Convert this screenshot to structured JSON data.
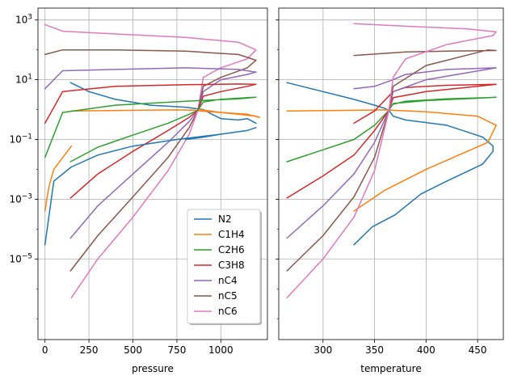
{
  "chart_data": [
    {
      "type": "line",
      "id": "left",
      "xlabel": "pressure",
      "ylabel": "",
      "yscale": "log",
      "xlim": [
        -40,
        1265
      ],
      "ylim": [
        2e-08,
        2500
      ],
      "xticks": [
        0,
        250,
        500,
        750,
        1000
      ],
      "xtick_labels": [
        "0",
        "250",
        "500",
        "750",
        "1000"
      ],
      "grid": true,
      "legend": "lower-right",
      "series": [
        {
          "name": "N2",
          "color": "#1f77b4",
          "x": [
            145,
            250,
            400,
            600,
            800,
            900,
            950,
            1000,
            1100,
            1150,
            1200
          ],
          "y": [
            8,
            4,
            2.2,
            1.4,
            1.2,
            1.0,
            0.7,
            0.5,
            0.45,
            0.5,
            0.35
          ]
        },
        {
          "name": "C1H4",
          "color": "#ff7f0e",
          "x": [
            150,
            300,
            500,
            750,
            850,
            880,
            1000,
            1150,
            1220
          ],
          "y": [
            0.9,
            0.92,
            0.95,
            0.98,
            0.96,
            0.9,
            0.8,
            0.7,
            0.55
          ]
        },
        {
          "name": "C2H6",
          "color": "#2ca02c",
          "x": [
            145,
            300,
            500,
            700,
            820,
            870
          ],
          "y": [
            0.018,
            0.055,
            0.14,
            0.35,
            0.7,
            0.95
          ]
        },
        {
          "name": "C3H8",
          "color": "#d62728",
          "x": [
            145,
            300,
            500,
            700,
            820,
            870
          ],
          "y": [
            0.0011,
            0.007,
            0.04,
            0.2,
            0.55,
            0.95
          ]
        },
        {
          "name": "nC4",
          "color": "#9467bd",
          "x": [
            145,
            300,
            500,
            700,
            820,
            870
          ],
          "y": [
            5e-05,
            0.0006,
            0.007,
            0.08,
            0.4,
            0.95
          ]
        },
        {
          "name": "nC5",
          "color": "#8c564b",
          "x": [
            145,
            300,
            500,
            700,
            820,
            870
          ],
          "y": [
            4e-06,
            6e-05,
            0.0012,
            0.025,
            0.25,
            0.95
          ]
        },
        {
          "name": "nC6",
          "color": "#e377c2",
          "x": [
            150,
            300,
            500,
            700,
            820,
            870
          ],
          "y": [
            5e-07,
            1e-05,
            0.00025,
            0.009,
            0.15,
            0.95
          ]
        },
        {
          "name": "nC6",
          "color": "#e377c2",
          "x": [
            870,
            900,
            1000,
            1150,
            1200,
            1100,
            800,
            400,
            100,
            0
          ],
          "y": [
            0.95,
            12,
            25,
            50,
            100,
            180,
            260,
            340,
            420,
            700
          ]
        },
        {
          "name": "nC5",
          "color": "#8c564b",
          "x": [
            870,
            900,
            1000,
            1150,
            1200,
            1100,
            800,
            400,
            100,
            0
          ],
          "y": [
            0.95,
            6,
            12,
            25,
            45,
            70,
            90,
            100,
            100,
            70
          ]
        },
        {
          "name": "nC4",
          "color": "#9467bd",
          "x": [
            870,
            900,
            1000,
            1150,
            1200,
            1100,
            800,
            400,
            100,
            0
          ],
          "y": [
            0.95,
            4,
            10,
            15,
            18,
            22,
            25,
            22,
            20,
            5
          ]
        },
        {
          "name": "C3H8",
          "color": "#d62728",
          "x": [
            870,
            900,
            1000,
            1150,
            1200,
            1100,
            800,
            400,
            100,
            0
          ],
          "y": [
            0.95,
            2.8,
            4,
            6,
            7,
            7.2,
            6.8,
            6,
            4,
            0.35
          ]
        },
        {
          "name": "C2H6",
          "color": "#2ca02c",
          "x": [
            870,
            900,
            1000,
            1150,
            1200,
            1100,
            800,
            400,
            100,
            0
          ],
          "y": [
            0.95,
            1.8,
            2.2,
            2.5,
            2.6,
            2.3,
            1.9,
            1.4,
            0.8,
            0.025
          ]
        },
        {
          "name": "C1H4",
          "color": "#ff7f0e",
          "x": [
            880,
            1000,
            1100,
            1200,
            1220
          ],
          "y": [
            1.0,
            0.8,
            0.7,
            0.6,
            0.55
          ]
        },
        {
          "name": "C1H4",
          "color": "#ff7f0e",
          "x": [
            150,
            50,
            25,
            10,
            0
          ],
          "y": [
            0.06,
            0.01,
            0.003,
            0.001,
            0.0004
          ]
        },
        {
          "name": "N2",
          "color": "#1f77b4",
          "x": [
            800,
            900,
            1000,
            1150,
            1200,
            1150,
            1000,
            750,
            500,
            300,
            150,
            50,
            0
          ],
          "y": [
            0.1,
            0.12,
            0.15,
            0.2,
            0.25,
            0.2,
            0.15,
            0.1,
            0.06,
            0.03,
            0.012,
            0.004,
            3e-05
          ]
        }
      ]
    },
    {
      "type": "line",
      "id": "right",
      "xlabel": "temperature",
      "ylabel": "",
      "yscale": "log",
      "xlim": [
        257,
        475
      ],
      "ylim": [
        2e-08,
        2500
      ],
      "xticks": [
        300,
        350,
        400,
        450
      ],
      "xtick_labels": [
        "300",
        "350",
        "400",
        "450"
      ],
      "grid": true,
      "series": [
        {
          "name": "N2",
          "color": "#1f77b4",
          "x": [
            265,
            300,
            330,
            350,
            360,
            364,
            368,
            380,
            420,
            455,
            465,
            465,
            455,
            420,
            395,
            370,
            348,
            330
          ],
          "y": [
            8,
            4,
            2.2,
            1.4,
            1.1,
            0.95,
            0.6,
            0.45,
            0.3,
            0.12,
            0.06,
            0.04,
            0.015,
            0.004,
            0.0015,
            0.0003,
            0.00012,
            3e-05
          ]
        },
        {
          "name": "C1H4",
          "color": "#ff7f0e",
          "x": [
            265,
            330,
            362,
            368,
            400,
            450,
            468,
            460,
            420,
            400,
            360,
            330
          ],
          "y": [
            0.9,
            0.95,
            0.98,
            0.95,
            0.85,
            0.6,
            0.3,
            0.08,
            0.02,
            0.01,
            0.002,
            0.0004
          ]
        },
        {
          "name": "C2H6",
          "color": "#2ca02c",
          "x": [
            265,
            300,
            330,
            350,
            364,
            368,
            400,
            450,
            468,
            460,
            420,
            380,
            368
          ],
          "y": [
            0.018,
            0.045,
            0.1,
            0.3,
            0.95,
            1.6,
            2.0,
            2.4,
            2.6,
            2.5,
            2.3,
            1.9,
            1.5
          ]
        },
        {
          "name": "C3H8",
          "color": "#d62728",
          "x": [
            265,
            300,
            330,
            350,
            364,
            368,
            400,
            450,
            468,
            420,
            380,
            368,
            350,
            330
          ],
          "y": [
            0.0011,
            0.006,
            0.03,
            0.2,
            0.95,
            2.5,
            4,
            6,
            7,
            6.5,
            5.5,
            4,
            0.9,
            0.35
          ]
        },
        {
          "name": "nC4",
          "color": "#9467bd",
          "x": [
            265,
            300,
            330,
            350,
            364,
            368,
            400,
            468,
            420,
            380,
            368,
            350,
            330
          ],
          "y": [
            5e-05,
            0.0006,
            0.007,
            0.08,
            0.95,
            4,
            10,
            25,
            22,
            15,
            10,
            6,
            5
          ]
        },
        {
          "name": "nC5",
          "color": "#8c564b",
          "x": [
            265,
            300,
            330,
            350,
            364,
            368,
            400,
            460,
            468,
            420,
            380,
            330
          ],
          "y": [
            4e-06,
            6e-05,
            0.0012,
            0.025,
            0.95,
            6,
            30,
            100,
            95,
            90,
            85,
            65
          ]
        },
        {
          "name": "nC6",
          "color": "#e377c2",
          "x": [
            265,
            300,
            330,
            350,
            364,
            368,
            380,
            420,
            465,
            468,
            440,
            380,
            330
          ],
          "y": [
            5e-07,
            1e-05,
            0.00025,
            0.009,
            0.95,
            12,
            50,
            150,
            300,
            400,
            500,
            620,
            750
          ]
        }
      ]
    }
  ],
  "legend": {
    "entries": [
      {
        "label": "N2",
        "color": "#1f77b4"
      },
      {
        "label": "C1H4",
        "color": "#ff7f0e"
      },
      {
        "label": "C2H6",
        "color": "#2ca02c"
      },
      {
        "label": "C3H8",
        "color": "#d62728"
      },
      {
        "label": "nC4",
        "color": "#9467bd"
      },
      {
        "label": "nC5",
        "color": "#8c564b"
      },
      {
        "label": "nC6",
        "color": "#e377c2"
      }
    ]
  },
  "y_tick_labels": [
    {
      "base": "10",
      "exp": "3"
    },
    {
      "base": "10",
      "exp": "1"
    },
    {
      "base": "10",
      "exp": "−1"
    },
    {
      "base": "10",
      "exp": "−3"
    },
    {
      "base": "10",
      "exp": "−5"
    }
  ],
  "y_tick_values": [
    1000,
    10,
    0.1,
    0.001,
    1e-05
  ]
}
